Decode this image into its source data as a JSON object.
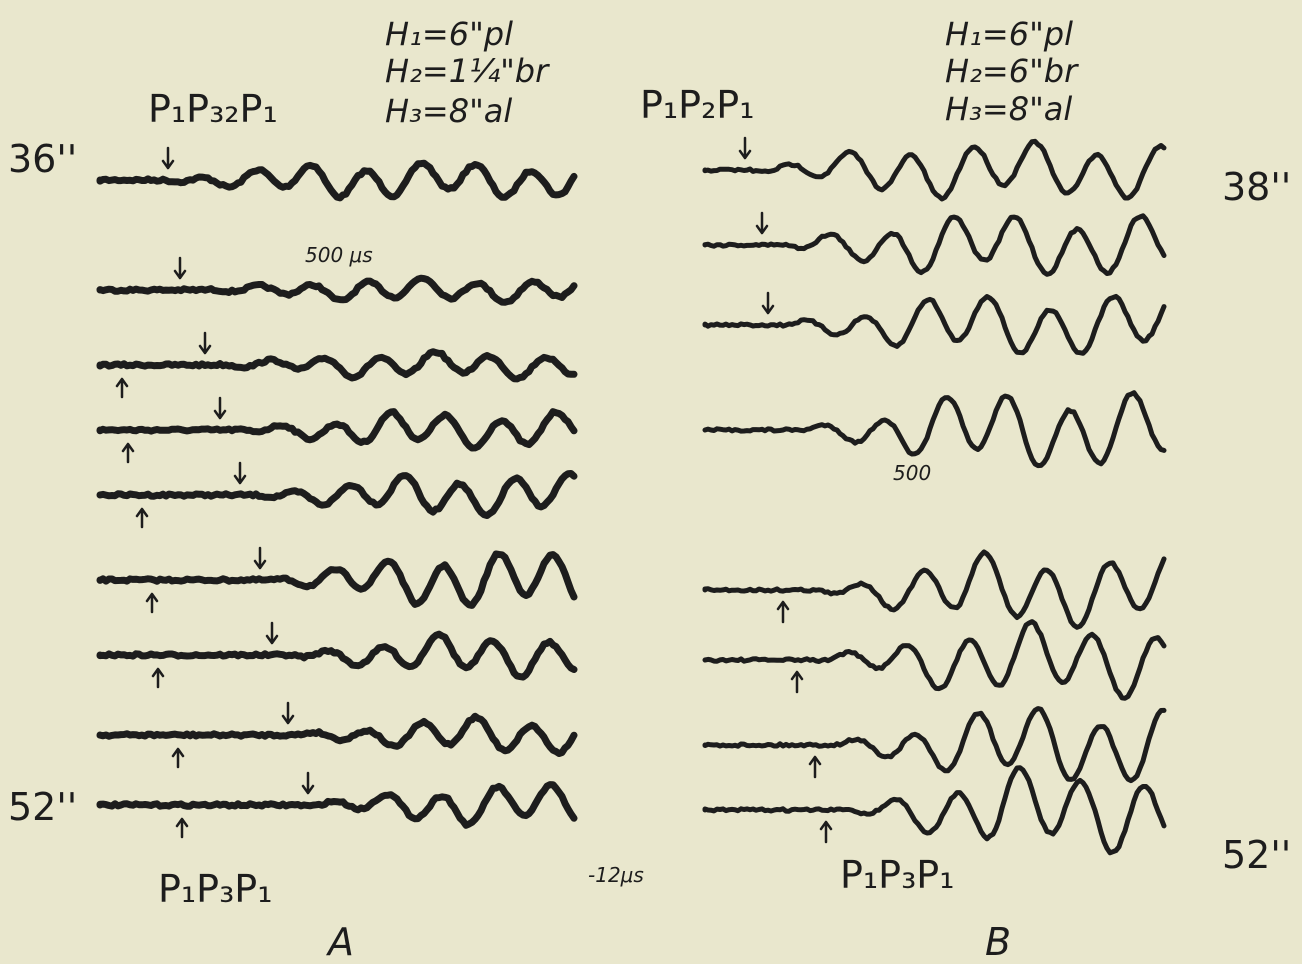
{
  "panel_a": {
    "header": [
      "H₁=6\"pl",
      "H₂=1¼\"br",
      "H₃=8\"al"
    ],
    "top_label": "P₁P₃₂P₁",
    "bottom_label": "P₁P₃P₁",
    "top_depth": "36''",
    "bottom_depth": "52''",
    "time_mark": "500 μs",
    "letter": "A"
  },
  "panel_b": {
    "header": [
      "H₁=6\"pl",
      "H₂=6\"br",
      "H₃=8\"al"
    ],
    "top_label": "P₁P₂P₁",
    "bottom_label": "P₁P₃P₁",
    "top_depth": "38''",
    "bottom_depth": "52''",
    "time_mark": "500",
    "letter": "B"
  },
  "scale_note": "-12μs"
}
